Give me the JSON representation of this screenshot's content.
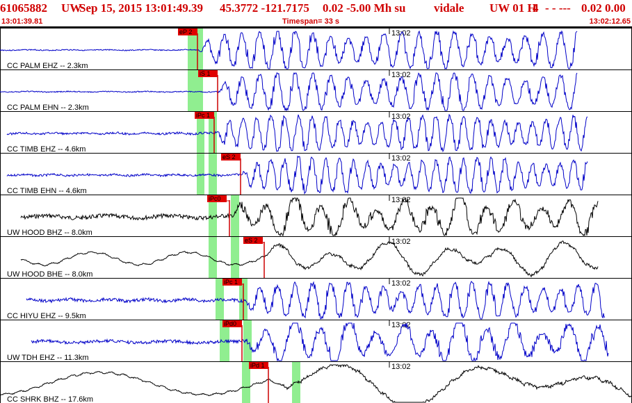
{
  "header": {
    "event_id": "61065882",
    "network": "UW",
    "datetime": "Sep 15, 2015 13:01:49.39",
    "coords": "45.3772 -121.7175",
    "magnitude": "0.02 -5.00 Mh su",
    "analyst": "vidale",
    "source": "UW 01 H",
    "count": "4",
    "flags": "-  - ---",
    "values": "0.02 0.00"
  },
  "subheader": {
    "start_time": "13:01:39.81",
    "timespan": "Timespan=  33 s",
    "end_time": "13:02:12.65"
  },
  "time_marker": "13:02",
  "colors": {
    "header": "#d00000",
    "trace_blue": "#0000c8",
    "trace_black": "#000000",
    "pick": "#cc0000",
    "pick_window": "#90ee90"
  },
  "traces": [
    {
      "label": "CC PALM EHZ -- 2.3km",
      "color": "trace_blue",
      "pick": "eP 2"
    },
    {
      "label": "CC PALM EHN -- 2.3km",
      "color": "trace_blue",
      "pick": "iS 1"
    },
    {
      "label": "CC TIMB EHZ -- 4.6km",
      "color": "trace_blue",
      "pick": "iPc 1"
    },
    {
      "label": "CC TIMB EHN -- 4.6km",
      "color": "trace_blue",
      "pick": "eS 2"
    },
    {
      "label": "UW HOOD BHZ -- 8.0km",
      "color": "trace_black",
      "pick": "iPc0"
    },
    {
      "label": "UW HOOD BHE -- 8.0km",
      "color": "trace_black",
      "pick": "eS 2"
    },
    {
      "label": "CC HIYU EHZ -- 9.5km",
      "color": "trace_blue",
      "pick": "iPc 1"
    },
    {
      "label": "UW TDH EHZ -- 11.3km",
      "color": "trace_blue",
      "pick": "iPd0"
    },
    {
      "label": "CC SHRK BHZ -- 17.6km",
      "color": "trace_black",
      "pick": "iPd 1"
    }
  ]
}
